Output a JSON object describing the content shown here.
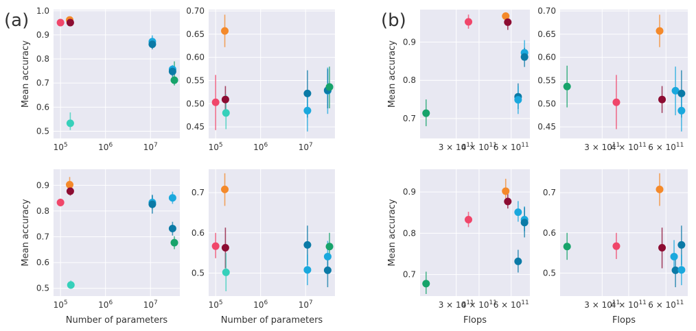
{
  "panels": [
    {
      "id": "a",
      "label": "(a)"
    },
    {
      "id": "b",
      "label": "(b)"
    }
  ],
  "colors": {
    "pink": "#f0466a",
    "orange": "#f4892a",
    "maroon": "#8c0c32",
    "blue": "#0b7aa6",
    "light_blue": "#1aa8dd",
    "green": "#17a36b",
    "teal": "#36d0ba",
    "plot_bg": "#e8e8f2",
    "grid": "#ffffff"
  },
  "chart_data": [
    {
      "type": "scatter",
      "panel": "a",
      "xscale": "log",
      "xlabel": "",
      "ylabel": "Mean accuracy",
      "xlim": [
        70000,
        45000000
      ],
      "ylim": [
        0.47,
        1.005
      ],
      "xticks": [
        {
          "v": 100000,
          "b": "10",
          "e": "5"
        },
        {
          "v": 1000000,
          "b": "10",
          "e": "6"
        },
        {
          "v": 10000000,
          "b": "10",
          "e": "7"
        }
      ],
      "yticks": [
        0.5,
        0.6,
        0.7,
        0.8,
        0.9,
        1.0
      ],
      "ytick_labels": [
        "0.5",
        "0.6",
        "0.7",
        "0.8",
        "0.9",
        "1.0"
      ],
      "points": [
        {
          "x": 100000,
          "y": 0.951,
          "lo": 0.945,
          "hi": 0.957,
          "color": "pink"
        },
        {
          "x": 160000,
          "y": 0.962,
          "lo": 0.958,
          "hi": 0.966,
          "color": "orange"
        },
        {
          "x": 165000,
          "y": 0.951,
          "lo": 0.946,
          "hi": 0.956,
          "color": "maroon"
        },
        {
          "x": 165000,
          "y": 0.533,
          "lo": 0.505,
          "hi": 0.578,
          "color": "teal"
        },
        {
          "x": 11000000,
          "y": 0.872,
          "lo": 0.855,
          "hi": 0.898,
          "color": "light_blue"
        },
        {
          "x": 11000000,
          "y": 0.861,
          "lo": 0.84,
          "hi": 0.885,
          "color": "blue"
        },
        {
          "x": 31000000,
          "y": 0.757,
          "lo": 0.73,
          "hi": 0.775,
          "color": "light_blue"
        },
        {
          "x": 31000000,
          "y": 0.748,
          "lo": 0.725,
          "hi": 0.77,
          "color": "blue"
        },
        {
          "x": 34000000,
          "y": 0.712,
          "lo": 0.69,
          "hi": 0.79,
          "color": "green"
        }
      ]
    },
    {
      "type": "scatter",
      "panel": "a",
      "xscale": "log",
      "xlabel": "",
      "ylabel": "",
      "xlim": [
        70000,
        45000000
      ],
      "ylim": [
        0.425,
        0.703
      ],
      "xticks": [
        {
          "v": 100000,
          "b": "10",
          "e": "5"
        },
        {
          "v": 1000000,
          "b": "10",
          "e": "6"
        },
        {
          "v": 10000000,
          "b": "10",
          "e": "7"
        }
      ],
      "yticks": [
        0.45,
        0.5,
        0.55,
        0.6,
        0.65,
        0.7
      ],
      "ytick_labels": [
        "0.45",
        "0.50",
        "0.55",
        "0.60",
        "0.65",
        "0.70"
      ],
      "points": [
        {
          "x": 100000,
          "y": 0.503,
          "lo": 0.443,
          "hi": 0.562,
          "color": "pink"
        },
        {
          "x": 160000,
          "y": 0.657,
          "lo": 0.622,
          "hi": 0.692,
          "color": "orange"
        },
        {
          "x": 165000,
          "y": 0.509,
          "lo": 0.48,
          "hi": 0.538,
          "color": "maroon"
        },
        {
          "x": 170000,
          "y": 0.48,
          "lo": 0.445,
          "hi": 0.52,
          "color": "teal"
        },
        {
          "x": 11000000,
          "y": 0.522,
          "lo": 0.47,
          "hi": 0.572,
          "color": "blue"
        },
        {
          "x": 11000000,
          "y": 0.485,
          "lo": 0.44,
          "hi": 0.53,
          "color": "light_blue"
        },
        {
          "x": 31000000,
          "y": 0.528,
          "lo": 0.478,
          "hi": 0.578,
          "color": "light_blue"
        },
        {
          "x": 31000000,
          "y": 0.529,
          "lo": 0.49,
          "hi": 0.575,
          "color": "blue"
        },
        {
          "x": 34000000,
          "y": 0.536,
          "lo": 0.49,
          "hi": 0.58,
          "color": "green"
        }
      ]
    },
    {
      "type": "scatter",
      "panel": "a",
      "xscale": "log",
      "xlabel": "Number of parameters",
      "ylabel": "Mean accuracy",
      "xlim": [
        70000,
        45000000
      ],
      "ylim": [
        0.47,
        0.962
      ],
      "xticks": [
        {
          "v": 100000,
          "b": "10",
          "e": "5"
        },
        {
          "v": 1000000,
          "b": "10",
          "e": "6"
        },
        {
          "v": 10000000,
          "b": "10",
          "e": "7"
        }
      ],
      "yticks": [
        0.5,
        0.6,
        0.7,
        0.8,
        0.9
      ],
      "ytick_labels": [
        "0.5",
        "0.6",
        "0.7",
        "0.8",
        "0.9"
      ],
      "points": [
        {
          "x": 100000,
          "y": 0.833,
          "lo": 0.818,
          "hi": 0.848,
          "color": "pink"
        },
        {
          "x": 160000,
          "y": 0.902,
          "lo": 0.885,
          "hi": 0.932,
          "color": "orange"
        },
        {
          "x": 165000,
          "y": 0.877,
          "lo": 0.86,
          "hi": 0.895,
          "color": "maroon"
        },
        {
          "x": 170000,
          "y": 0.513,
          "lo": 0.498,
          "hi": 0.53,
          "color": "teal"
        },
        {
          "x": 11000000,
          "y": 0.833,
          "lo": 0.81,
          "hi": 0.86,
          "color": "light_blue"
        },
        {
          "x": 11000000,
          "y": 0.826,
          "lo": 0.79,
          "hi": 0.863,
          "color": "blue"
        },
        {
          "x": 31000000,
          "y": 0.851,
          "lo": 0.828,
          "hi": 0.875,
          "color": "light_blue"
        },
        {
          "x": 31000000,
          "y": 0.732,
          "lo": 0.705,
          "hi": 0.758,
          "color": "blue"
        },
        {
          "x": 34000000,
          "y": 0.677,
          "lo": 0.652,
          "hi": 0.702,
          "color": "green"
        }
      ]
    },
    {
      "type": "scatter",
      "panel": "a",
      "xscale": "log",
      "xlabel": "Number of parameters",
      "ylabel": "",
      "xlim": [
        70000,
        45000000
      ],
      "ylim": [
        0.443,
        0.758
      ],
      "xticks": [
        {
          "v": 100000,
          "b": "10",
          "e": "5"
        },
        {
          "v": 1000000,
          "b": "10",
          "e": "6"
        },
        {
          "v": 10000000,
          "b": "10",
          "e": "7"
        }
      ],
      "yticks": [
        0.5,
        0.6,
        0.7
      ],
      "ytick_labels": [
        "0.5",
        "0.6",
        "0.7"
      ],
      "points": [
        {
          "x": 100000,
          "y": 0.567,
          "lo": 0.537,
          "hi": 0.6,
          "color": "pink"
        },
        {
          "x": 160000,
          "y": 0.708,
          "lo": 0.667,
          "hi": 0.748,
          "color": "orange"
        },
        {
          "x": 165000,
          "y": 0.563,
          "lo": 0.512,
          "hi": 0.613,
          "color": "maroon"
        },
        {
          "x": 170000,
          "y": 0.502,
          "lo": 0.455,
          "hi": 0.55,
          "color": "teal"
        },
        {
          "x": 11000000,
          "y": 0.57,
          "lo": 0.52,
          "hi": 0.618,
          "color": "blue"
        },
        {
          "x": 11000000,
          "y": 0.508,
          "lo": 0.47,
          "hi": 0.546,
          "color": "light_blue"
        },
        {
          "x": 31000000,
          "y": 0.541,
          "lo": 0.503,
          "hi": 0.58,
          "color": "light_blue"
        },
        {
          "x": 31000000,
          "y": 0.507,
          "lo": 0.465,
          "hi": 0.548,
          "color": "blue"
        },
        {
          "x": 34000000,
          "y": 0.566,
          "lo": 0.535,
          "hi": 0.6,
          "color": "green"
        }
      ]
    },
    {
      "type": "scatter",
      "panel": "b",
      "xscale": "log",
      "xlabel": "",
      "ylabel": "Mean accuracy",
      "xlim": [
        190000000000,
        760000000000
      ],
      "ylim": [
        0.648,
        0.985
      ],
      "xticks": [
        {
          "v": 300000000000,
          "b": "3 × 10",
          "e": "11"
        },
        {
          "v": 400000000000,
          "b": "4 × 10",
          "e": "11"
        },
        {
          "v": 600000000000,
          "b": "6 × 10",
          "e": "11"
        }
      ],
      "yticks": [
        0.7,
        0.8,
        0.9
      ],
      "ytick_labels": [
        "0.7",
        "0.8",
        "0.9"
      ],
      "points": [
        {
          "x": 205000000000,
          "y": 0.714,
          "lo": 0.68,
          "hi": 0.75,
          "color": "green"
        },
        {
          "x": 350000000000,
          "y": 0.953,
          "lo": 0.935,
          "hi": 0.972,
          "color": "pink"
        },
        {
          "x": 560000000000,
          "y": 0.968,
          "lo": 0.957,
          "hi": 0.978,
          "color": "orange"
        },
        {
          "x": 575000000000,
          "y": 0.952,
          "lo": 0.932,
          "hi": 0.972,
          "color": "maroon"
        },
        {
          "x": 655000000000,
          "y": 0.757,
          "lo": 0.725,
          "hi": 0.792,
          "color": "blue"
        },
        {
          "x": 655000000000,
          "y": 0.749,
          "lo": 0.712,
          "hi": 0.785,
          "color": "light_blue"
        },
        {
          "x": 710000000000,
          "y": 0.872,
          "lo": 0.852,
          "hi": 0.905,
          "color": "light_blue"
        },
        {
          "x": 710000000000,
          "y": 0.861,
          "lo": 0.835,
          "hi": 0.885,
          "color": "blue"
        }
      ]
    },
    {
      "type": "scatter",
      "panel": "b",
      "xscale": "log",
      "xlabel": "",
      "ylabel": "",
      "xlim": [
        190000000000,
        760000000000
      ],
      "ylim": [
        0.425,
        0.703
      ],
      "xticks": [
        {
          "v": 300000000000,
          "b": "3 × 10",
          "e": "11"
        },
        {
          "v": 400000000000,
          "b": "4 × 10",
          "e": "11"
        },
        {
          "v": 600000000000,
          "b": "6 × 10",
          "e": "11"
        }
      ],
      "yticks": [
        0.45,
        0.5,
        0.55,
        0.6,
        0.65,
        0.7
      ],
      "ytick_labels": [
        "0.45",
        "0.50",
        "0.55",
        "0.60",
        "0.65",
        "0.70"
      ],
      "points": [
        {
          "x": 205000000000,
          "y": 0.537,
          "lo": 0.492,
          "hi": 0.582,
          "color": "green"
        },
        {
          "x": 350000000000,
          "y": 0.503,
          "lo": 0.445,
          "hi": 0.562,
          "color": "pink"
        },
        {
          "x": 560000000000,
          "y": 0.657,
          "lo": 0.622,
          "hi": 0.692,
          "color": "orange"
        },
        {
          "x": 575000000000,
          "y": 0.509,
          "lo": 0.48,
          "hi": 0.538,
          "color": "maroon"
        },
        {
          "x": 665000000000,
          "y": 0.528,
          "lo": 0.475,
          "hi": 0.58,
          "color": "light_blue"
        },
        {
          "x": 710000000000,
          "y": 0.522,
          "lo": 0.47,
          "hi": 0.572,
          "color": "blue"
        },
        {
          "x": 710000000000,
          "y": 0.485,
          "lo": 0.44,
          "hi": 0.53,
          "color": "light_blue"
        }
      ]
    },
    {
      "type": "scatter",
      "panel": "b",
      "xscale": "log",
      "xlabel": "Flops",
      "ylabel": "Mean accuracy",
      "xlim": [
        190000000000,
        760000000000
      ],
      "ylim": [
        0.648,
        0.955
      ],
      "xticks": [
        {
          "v": 300000000000,
          "b": "3 × 10",
          "e": "11"
        },
        {
          "v": 400000000000,
          "b": "4 × 10",
          "e": "11"
        },
        {
          "v": 600000000000,
          "b": "6 × 10",
          "e": "11"
        }
      ],
      "yticks": [
        0.7,
        0.8,
        0.9
      ],
      "ytick_labels": [
        "0.7",
        "0.8",
        "0.9"
      ],
      "points": [
        {
          "x": 205000000000,
          "y": 0.678,
          "lo": 0.653,
          "hi": 0.707,
          "color": "green"
        },
        {
          "x": 350000000000,
          "y": 0.833,
          "lo": 0.815,
          "hi": 0.852,
          "color": "pink"
        },
        {
          "x": 560000000000,
          "y": 0.902,
          "lo": 0.885,
          "hi": 0.932,
          "color": "orange"
        },
        {
          "x": 575000000000,
          "y": 0.877,
          "lo": 0.86,
          "hi": 0.895,
          "color": "maroon"
        },
        {
          "x": 655000000000,
          "y": 0.851,
          "lo": 0.828,
          "hi": 0.878,
          "color": "light_blue"
        },
        {
          "x": 655000000000,
          "y": 0.732,
          "lo": 0.705,
          "hi": 0.76,
          "color": "blue"
        },
        {
          "x": 710000000000,
          "y": 0.833,
          "lo": 0.805,
          "hi": 0.865,
          "color": "light_blue"
        },
        {
          "x": 710000000000,
          "y": 0.826,
          "lo": 0.79,
          "hi": 0.863,
          "color": "blue"
        }
      ]
    },
    {
      "type": "scatter",
      "panel": "b",
      "xscale": "log",
      "xlabel": "Flops",
      "ylabel": "",
      "xlim": [
        190000000000,
        760000000000
      ],
      "ylim": [
        0.443,
        0.758
      ],
      "xticks": [
        {
          "v": 300000000000,
          "b": "3 × 10",
          "e": "11"
        },
        {
          "v": 400000000000,
          "b": "4 × 10",
          "e": "11"
        },
        {
          "v": 600000000000,
          "b": "6 × 10",
          "e": "11"
        }
      ],
      "yticks": [
        0.5,
        0.6,
        0.7
      ],
      "ytick_labels": [
        "0.5",
        "0.6",
        "0.7"
      ],
      "points": [
        {
          "x": 205000000000,
          "y": 0.566,
          "lo": 0.533,
          "hi": 0.6,
          "color": "green"
        },
        {
          "x": 350000000000,
          "y": 0.567,
          "lo": 0.535,
          "hi": 0.6,
          "color": "pink"
        },
        {
          "x": 560000000000,
          "y": 0.708,
          "lo": 0.667,
          "hi": 0.748,
          "color": "orange"
        },
        {
          "x": 575000000000,
          "y": 0.563,
          "lo": 0.512,
          "hi": 0.613,
          "color": "maroon"
        },
        {
          "x": 655000000000,
          "y": 0.541,
          "lo": 0.5,
          "hi": 0.582,
          "color": "light_blue"
        },
        {
          "x": 665000000000,
          "y": 0.507,
          "lo": 0.465,
          "hi": 0.548,
          "color": "blue"
        },
        {
          "x": 710000000000,
          "y": 0.57,
          "lo": 0.52,
          "hi": 0.618,
          "color": "blue"
        },
        {
          "x": 710000000000,
          "y": 0.508,
          "lo": 0.47,
          "hi": 0.546,
          "color": "light_blue"
        }
      ]
    }
  ]
}
